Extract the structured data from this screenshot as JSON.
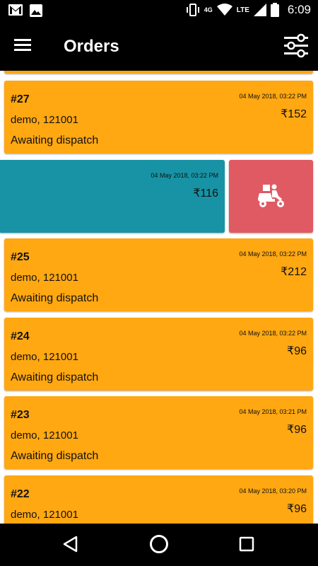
{
  "status_bar": {
    "time": "6:09",
    "network_4g": "4G",
    "network_lte": "LTE"
  },
  "app_bar": {
    "title": "Orders"
  },
  "orders": [
    {
      "number": "#27",
      "date": "04 May 2018, 03:22 PM",
      "amount": "₹152",
      "address": "demo, 121001",
      "status": "Awaiting dispatch"
    },
    {
      "number": "#25",
      "date": "04 May 2018, 03:22 PM",
      "amount": "₹212",
      "address": "demo, 121001",
      "status": "Awaiting dispatch"
    },
    {
      "number": "#24",
      "date": "04 May 2018, 03:22 PM",
      "amount": "₹96",
      "address": "demo, 121001",
      "status": "Awaiting dispatch"
    },
    {
      "number": "#23",
      "date": "04 May 2018, 03:21 PM",
      "amount": "₹96",
      "address": "demo, 121001",
      "status": "Awaiting dispatch"
    },
    {
      "number": "#22",
      "date": "04 May 2018, 03:20 PM",
      "amount": "₹96",
      "address": "demo, 121001",
      "status": ""
    }
  ],
  "swiped_order": {
    "date": "04 May 2018, 03:22 PM",
    "amount": "₹116"
  },
  "icons": {
    "menu": "menu-icon",
    "filter": "filter-icon",
    "dispatch": "delivery-scooter-icon",
    "back": "back-icon",
    "home": "home-icon",
    "recents": "recents-icon"
  },
  "colors": {
    "order_card": "#FFA812",
    "swiped_card": "#1893A5",
    "dispatch_action": "#E05A63"
  }
}
